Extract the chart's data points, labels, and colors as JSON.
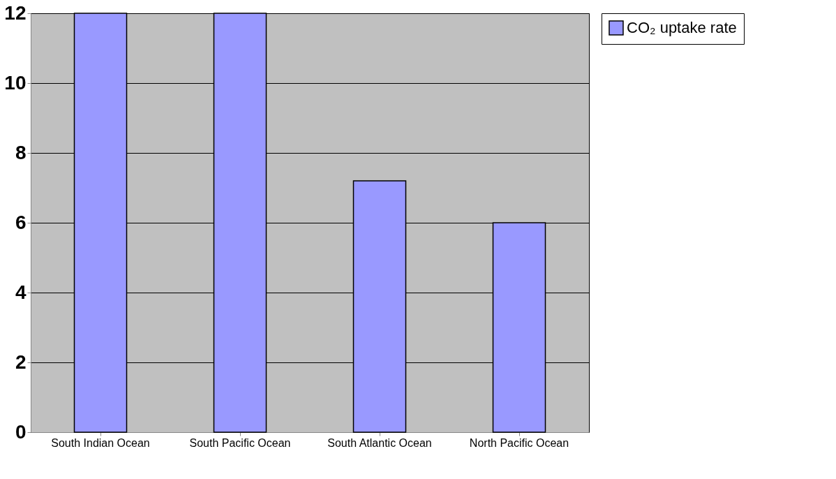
{
  "chart_data": {
    "type": "bar",
    "categories": [
      "South Indian Ocean",
      "South Pacific Ocean",
      "South Atlantic Ocean",
      "North Pacific Ocean"
    ],
    "series": [
      {
        "name": "CO₂ uptake rate",
        "color": "#9999ff",
        "values": [
          12,
          12,
          7.2,
          6.0
        ]
      }
    ],
    "ylim": [
      0,
      12
    ],
    "yticks": [
      0,
      2,
      4,
      6,
      8,
      10,
      12
    ],
    "grid": "y",
    "legend": "right"
  }
}
